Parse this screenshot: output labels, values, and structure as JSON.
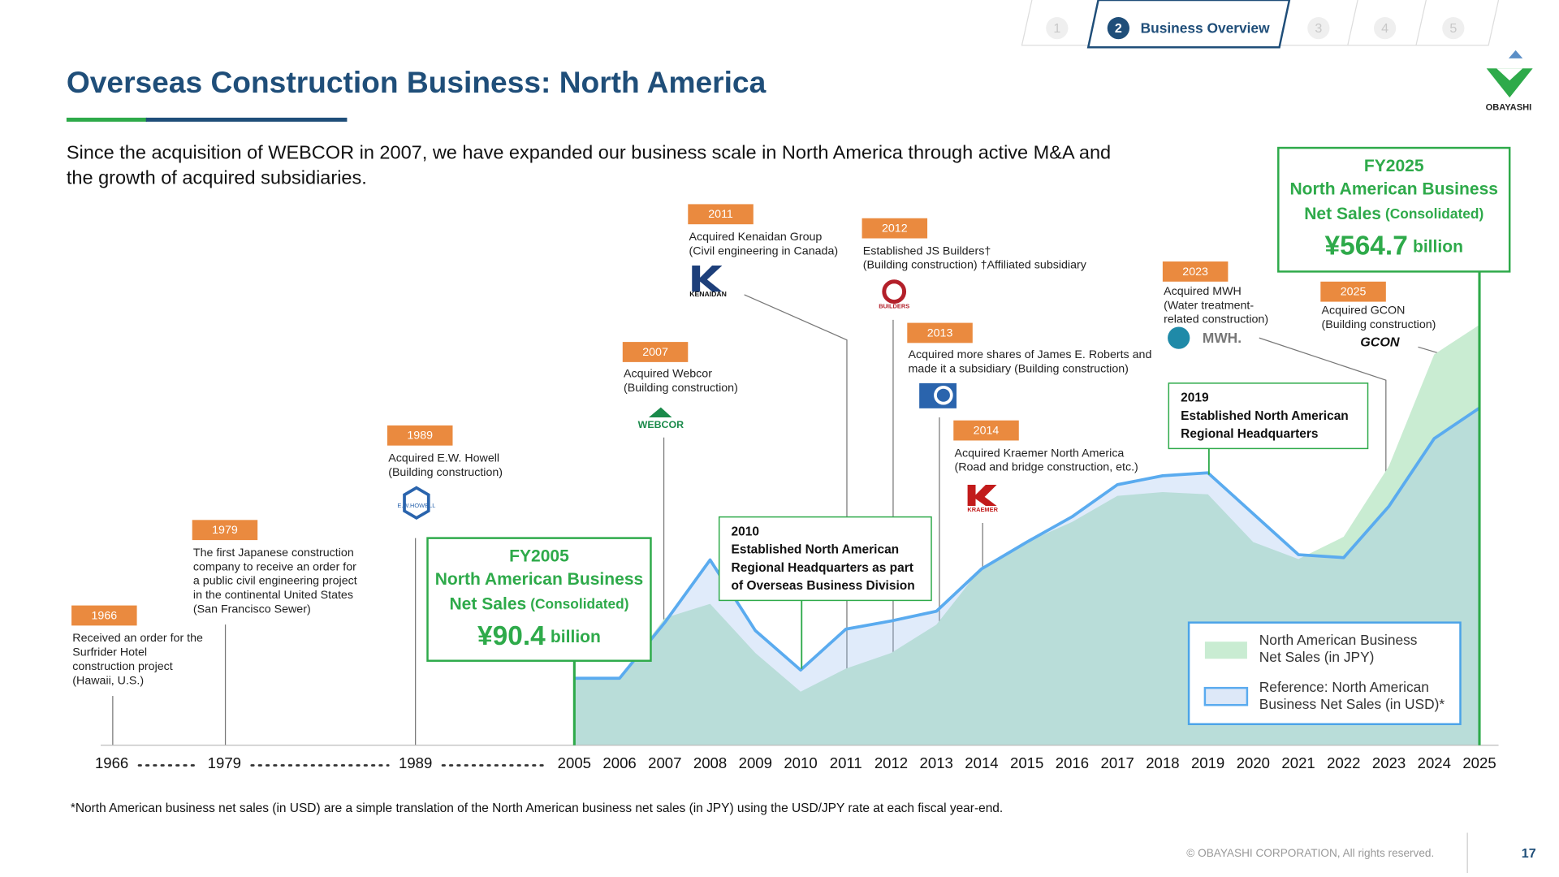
{
  "nav": {
    "tabs": [
      "1",
      "2",
      "3",
      "4",
      "5"
    ],
    "active_label": "Business Overview"
  },
  "logo": "OBAYASHI",
  "title": "Overseas Construction Business: North America",
  "subtitle": [
    "Since the acquisition of WEBCOR in 2007, we have expanded our business scale in North America through active M&A and",
    "the growth of acquired subsidiaries."
  ],
  "events": [
    {
      "year": "1966",
      "lines": [
        "Received an order for the",
        "Surfrider Hotel",
        "construction project",
        "(Hawaii, U.S.)"
      ]
    },
    {
      "year": "1979",
      "lines": [
        "The first Japanese construction",
        "company to receive an order for",
        "a public civil engineering project",
        "in the continental United States",
        "(San Francisco Sewer)"
      ]
    },
    {
      "year": "1989",
      "lines": [
        "Acquired E.W. Howell",
        "(Building construction)"
      ],
      "logo": "E.W.HOWELL"
    },
    {
      "year": "2007",
      "lines": [
        "Acquired Webcor",
        "(Building construction)"
      ],
      "logo": "WEBCOR"
    },
    {
      "year": "2011",
      "lines": [
        "Acquired Kenaidan Group",
        "(Civil engineering in Canada)"
      ],
      "logo": "KENAIDAN"
    },
    {
      "year": "2012",
      "lines": [
        "Established JS Builders†",
        "(Building construction) †Affiliated subsidiary"
      ],
      "logo": "BUILDERS"
    },
    {
      "year": "2013",
      "lines": [
        "Acquired more shares of James E. Roberts and",
        "made it a subsidiary (Building construction)"
      ]
    },
    {
      "year": "2014",
      "lines": [
        "Acquired Kraemer North America",
        "(Road and bridge construction, etc.)"
      ],
      "logo": "KRAEMER"
    },
    {
      "year": "2023",
      "lines": [
        "Acquired MWH",
        "(Water treatment-",
        "related construction)"
      ],
      "logo": "MWH."
    },
    {
      "year": "2025",
      "lines": [
        "Acquired GCON",
        "(Building construction)"
      ],
      "logo": "GCON"
    }
  ],
  "fy2005": {
    "label": "FY2005",
    "line": "North American Business",
    "net_sales": "Net Sales",
    "basis": "(Consolidated)",
    "amount": "¥90.4",
    "unit": "billion"
  },
  "fy2025": {
    "label": "FY2025",
    "line": "North American Business",
    "net_sales": "Net Sales",
    "basis": "(Consolidated)",
    "amount": "¥564.7",
    "unit": "billion"
  },
  "milestones": [
    {
      "lines": [
        "2010",
        "Established North American",
        "Regional Headquarters as part",
        "of Overseas Business Division"
      ]
    },
    {
      "lines": [
        "2019",
        "Established North American",
        "Regional Headquarters"
      ]
    }
  ],
  "chart_data": {
    "type": "area",
    "categories": [
      "1966",
      "1979",
      "1989",
      "2005",
      "2006",
      "2007",
      "2008",
      "2009",
      "2010",
      "2011",
      "2012",
      "2013",
      "2014",
      "2015",
      "2016",
      "2017",
      "2018",
      "2019",
      "2020",
      "2021",
      "2022",
      "2023",
      "2024",
      "2025"
    ],
    "series": [
      {
        "name": "North American Business Net Sales (in JPY)",
        "color": "#c9ecd2",
        "values": [
          null,
          null,
          null,
          90.4,
          90,
          171,
          190,
          124,
          72,
          103,
          124,
          162,
          239,
          273,
          300,
          335,
          340,
          337,
          273,
          250,
          280,
          375,
          525,
          564.7
        ]
      },
      {
        "name": "Reference: North American Business Net Sales (in USD)*",
        "color": "#5aabef",
        "values": [
          null,
          null,
          null,
          90,
          90,
          165,
          249,
          154,
          101,
          156,
          167,
          180,
          237,
          273,
          307,
          350,
          362,
          366,
          311,
          256,
          252,
          321,
          412,
          453
        ]
      }
    ]
  },
  "footnote": "*North American business net sales (in USD) are a simple translation of the North American business net sales (in JPY) using the USD/JPY rate at each fiscal year-end.",
  "copyright": "© OBAYASHI CORPORATION, All rights reserved.",
  "page": "17"
}
